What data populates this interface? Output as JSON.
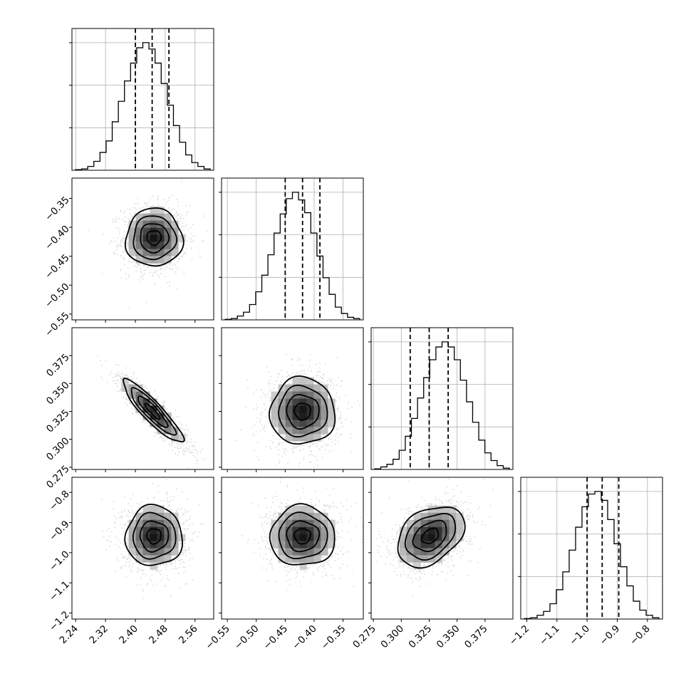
{
  "chart_data": {
    "type": "corner",
    "grid": true,
    "parameters": [
      {
        "index": 0,
        "range": [
          2.23,
          2.61
        ],
        "ticks": [
          "2.24",
          "2.32",
          "2.40",
          "2.48",
          "2.56"
        ],
        "tick_values": [
          2.24,
          2.32,
          2.4,
          2.48,
          2.56
        ],
        "quantiles": [
          2.4,
          2.445,
          2.49
        ]
      },
      {
        "index": 1,
        "range": [
          -0.56,
          -0.315
        ],
        "ticks": [
          "-0.55",
          "-0.50",
          "-0.45",
          "-0.40",
          "-0.35"
        ],
        "tick_values": [
          -0.55,
          -0.5,
          -0.45,
          -0.4,
          -0.35
        ],
        "quantiles": [
          -0.45,
          -0.42,
          -0.39
        ]
      },
      {
        "index": 2,
        "range": [
          0.273,
          0.4
        ],
        "ticks": [
          "0.275",
          "0.300",
          "0.325",
          "0.350",
          "0.375"
        ],
        "tick_values": [
          0.275,
          0.3,
          0.325,
          0.35,
          0.375
        ],
        "quantiles": [
          0.308,
          0.325,
          0.342
        ]
      },
      {
        "index": 3,
        "range": [
          -1.22,
          -0.75
        ],
        "ticks": [
          "-1.2",
          "-1.1",
          "-1.0",
          "-0.9",
          "-0.8"
        ],
        "tick_values": [
          -1.2,
          -1.1,
          -1.0,
          -0.9,
          -0.8
        ],
        "quantiles": [
          -1.0,
          -0.95,
          -0.895
        ]
      }
    ],
    "histograms": [
      {
        "param": 0,
        "counts": [
          0.005,
          0.01,
          0.03,
          0.07,
          0.14,
          0.23,
          0.38,
          0.54,
          0.7,
          0.84,
          0.96,
          1.0,
          0.95,
          0.84,
          0.68,
          0.51,
          0.35,
          0.22,
          0.12,
          0.06,
          0.03,
          0.01
        ]
      },
      {
        "param": 1,
        "counts": [
          0.004,
          0.01,
          0.03,
          0.06,
          0.12,
          0.22,
          0.35,
          0.51,
          0.68,
          0.83,
          0.95,
          1.0,
          0.94,
          0.84,
          0.68,
          0.5,
          0.33,
          0.2,
          0.1,
          0.05,
          0.02,
          0.01
        ]
      },
      {
        "param": 2,
        "counts": [
          0.005,
          0.02,
          0.04,
          0.08,
          0.15,
          0.26,
          0.4,
          0.56,
          0.72,
          0.86,
          0.96,
          1.0,
          0.96,
          0.86,
          0.7,
          0.53,
          0.37,
          0.23,
          0.13,
          0.07,
          0.03,
          0.01
        ]
      },
      {
        "param": 3,
        "counts": [
          0.004,
          0.01,
          0.03,
          0.06,
          0.12,
          0.23,
          0.37,
          0.54,
          0.72,
          0.88,
          0.98,
          1.0,
          0.93,
          0.78,
          0.59,
          0.41,
          0.26,
          0.14,
          0.07,
          0.03,
          0.01
        ]
      }
    ],
    "pairs": [
      {
        "x_param": 0,
        "y_param": 1,
        "center": [
          2.45,
          -0.418
        ],
        "sigma": [
          0.038,
          0.025
        ],
        "rho": 0.0
      },
      {
        "x_param": 0,
        "y_param": 2,
        "center": [
          2.446,
          0.325
        ],
        "sigma": [
          0.04,
          0.014
        ],
        "rho": -0.9
      },
      {
        "x_param": 1,
        "y_param": 2,
        "center": [
          -0.42,
          0.325
        ],
        "sigma": [
          0.028,
          0.015
        ],
        "rho": 0.0
      },
      {
        "x_param": 0,
        "y_param": 3,
        "center": [
          2.45,
          -0.945
        ],
        "sigma": [
          0.038,
          0.05
        ],
        "rho": 0.0
      },
      {
        "x_param": 1,
        "y_param": 3,
        "center": [
          -0.42,
          -0.945
        ],
        "sigma": [
          0.028,
          0.05
        ],
        "rho": 0.0
      },
      {
        "x_param": 2,
        "y_param": 3,
        "center": [
          0.326,
          -0.945
        ],
        "sigma": [
          0.015,
          0.05
        ],
        "rho": 0.35
      }
    ],
    "contour_levels_sigma": [
      0.5,
      1.0,
      1.5,
      2.0
    ]
  }
}
